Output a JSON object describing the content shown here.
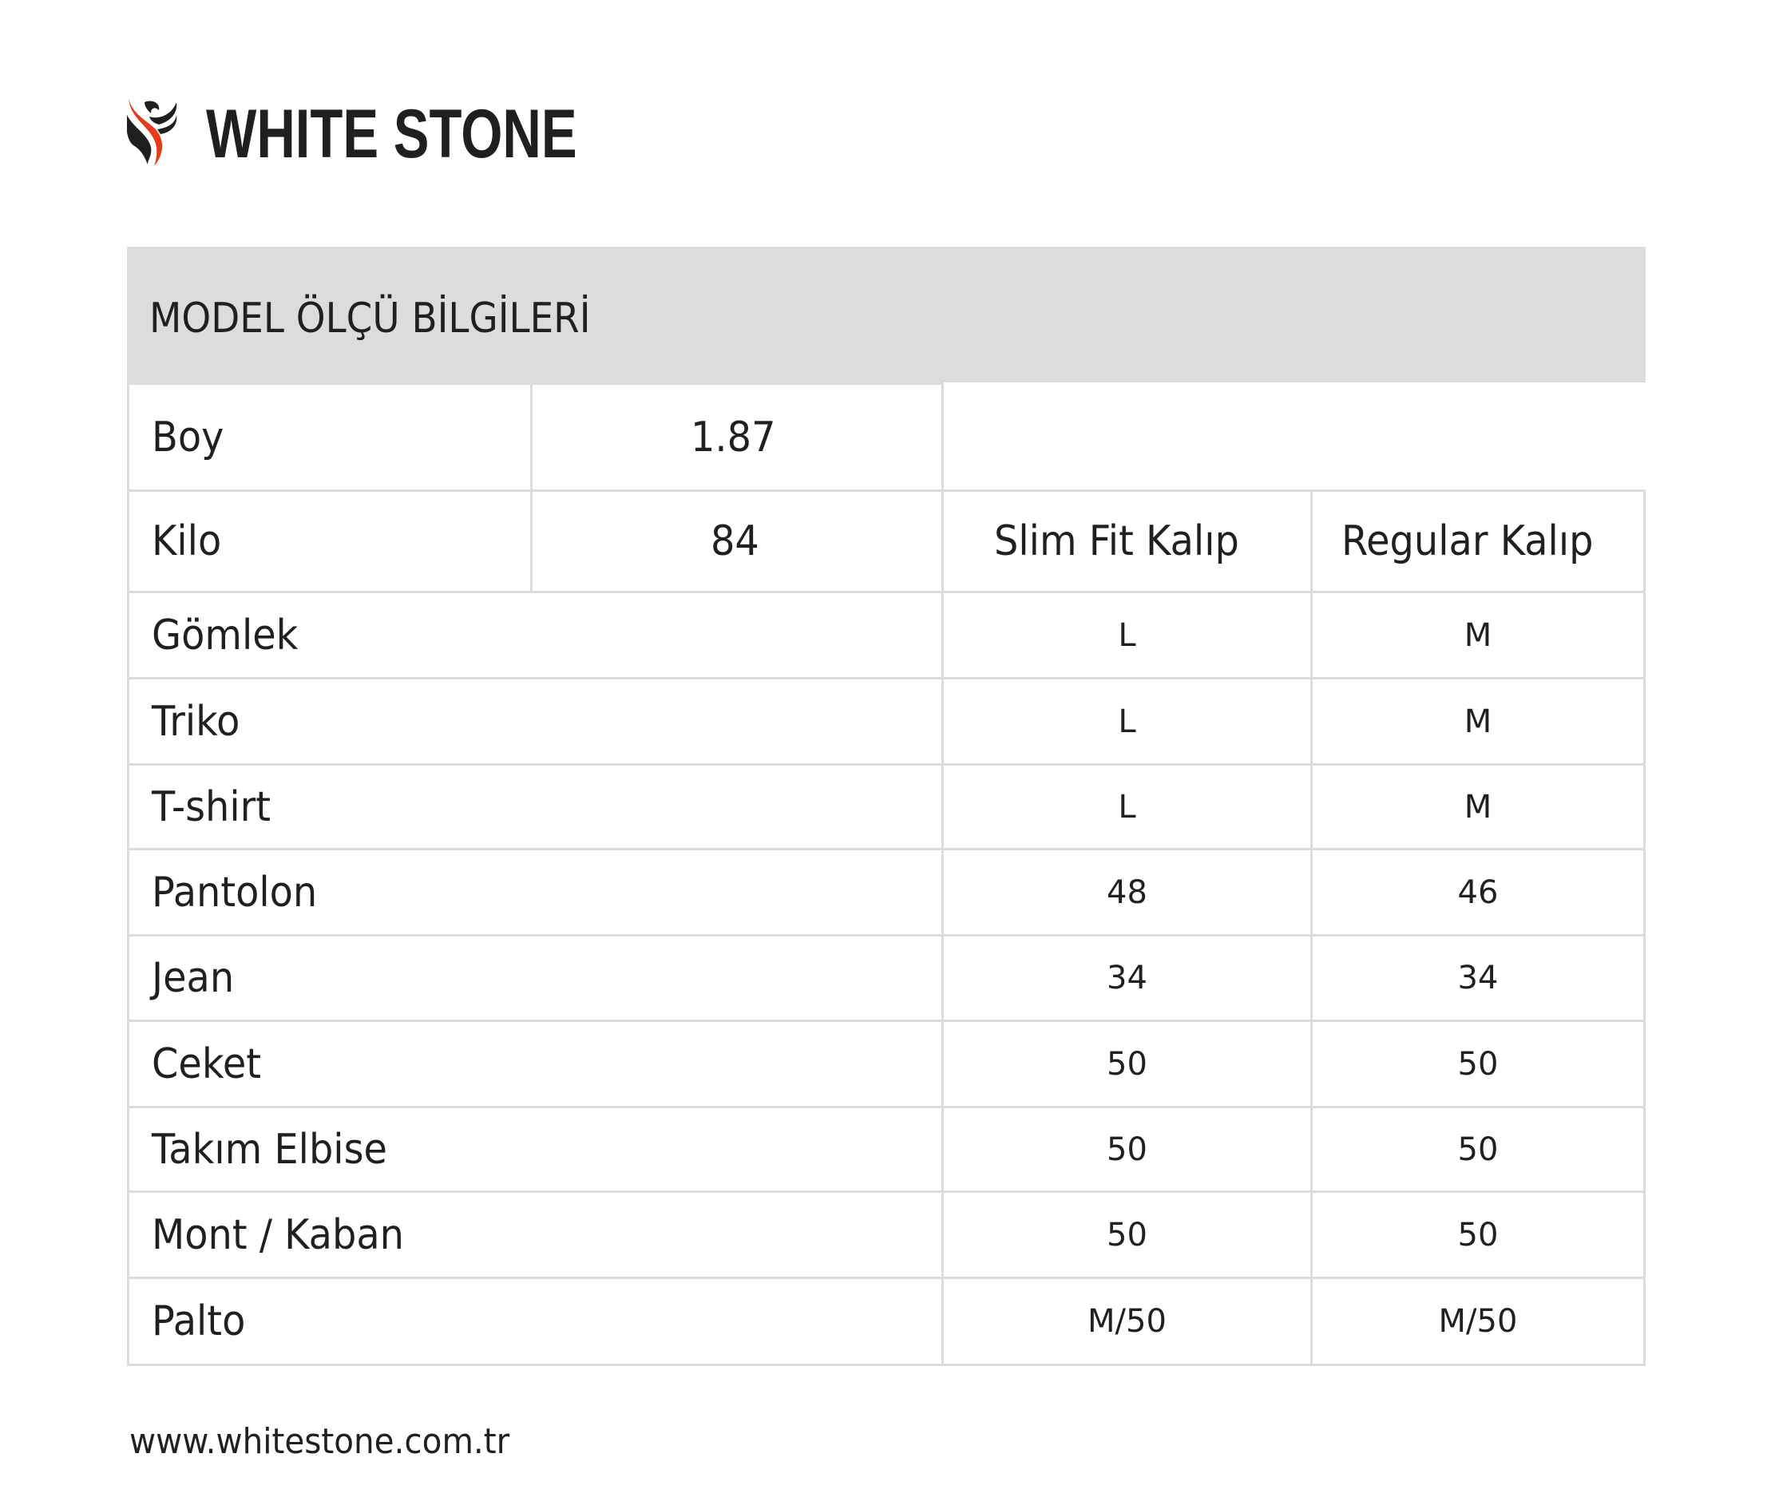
{
  "brand": {
    "name": "WHITE STONE",
    "logo_icon": "phoenix-logo-icon",
    "accent": "#e8391d"
  },
  "header": {
    "title": "MODEL ÖLÇÜ BİLGİLERİ"
  },
  "model": {
    "boy_label": "Boy",
    "boy_value": "1.87",
    "kilo_label": "Kilo",
    "kilo_value": "84"
  },
  "columns": {
    "slim": "Slim Fit Kalıp",
    "regular": "Regular Kalıp"
  },
  "rows": [
    {
      "label": "Gömlek",
      "slim": "L",
      "regular": "M"
    },
    {
      "label": "Triko",
      "slim": "L",
      "regular": "M"
    },
    {
      "label": "T-shirt",
      "slim": "L",
      "regular": "M"
    },
    {
      "label": "Pantolon",
      "slim": "48",
      "regular": "46"
    },
    {
      "label": "Jean",
      "slim": "34",
      "regular": "34"
    },
    {
      "label": "Ceket",
      "slim": "50",
      "regular": "50"
    },
    {
      "label": "Takım Elbise",
      "slim": "50",
      "regular": "50"
    },
    {
      "label": "Mont / Kaban",
      "slim": "50",
      "regular": "50"
    },
    {
      "label": "Palto",
      "slim": "M/50",
      "regular": "M/50"
    }
  ],
  "footer": {
    "url": "www.whitestone.com.tr"
  }
}
